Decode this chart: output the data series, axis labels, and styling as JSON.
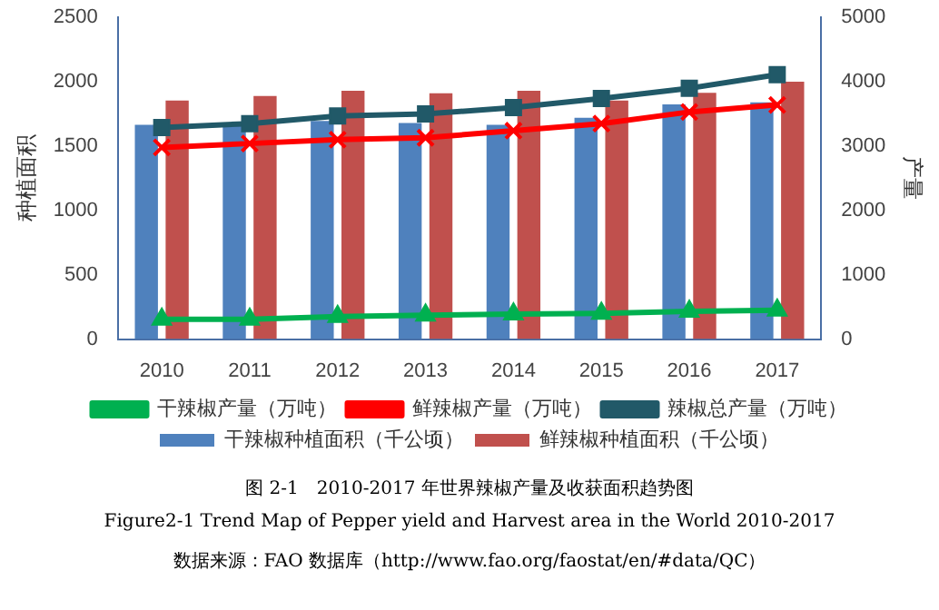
{
  "chart_data": {
    "type": "bar",
    "title": "图 2-1　2010-2017 年世界辣椒产量及收获面积趋势图",
    "subtitle": "Figure2-1 Trend Map of Pepper yield and Harvest area in the World 2010-2017",
    "annotations": [
      "数据来源：FAO 数据库（http://www.fao.org/faostat/en/#data/QC）"
    ],
    "ylabel": "种植面积",
    "y2label": "产量",
    "categories": [
      "2010",
      "2011",
      "2012",
      "2013",
      "2014",
      "2015",
      "2016",
      "2017"
    ],
    "series": [
      {
        "name": "干辣椒种植面积（千公顷）",
        "color": "#4f81bd",
        "values": [
          1665,
          1665,
          1695,
          1680,
          1665,
          1720,
          1825,
          1840
        ]
      },
      {
        "name": "鲜辣椒种植面积（千公顷）",
        "color": "#c0504d",
        "values": [
          1855,
          1890,
          1930,
          1910,
          1930,
          1855,
          1915,
          2000
        ]
      },
      {
        "name": "干辣椒产量（万吨）",
        "type": "line",
        "axis": "y2",
        "marker": "triangle",
        "color": "#00b050",
        "values": [
          310,
          310,
          350,
          370,
          390,
          400,
          430,
          450
        ]
      },
      {
        "name": "鲜辣椒产量（万吨）",
        "type": "line",
        "axis": "y2",
        "marker": "cross",
        "color": "#ff0000",
        "values": [
          2980,
          3040,
          3100,
          3130,
          3240,
          3350,
          3530,
          3640
        ]
      },
      {
        "name": "辣椒总产量（万吨）",
        "type": "line",
        "axis": "y2",
        "marker": "square",
        "color": "#215968",
        "values": [
          3290,
          3350,
          3470,
          3500,
          3600,
          3740,
          3900,
          4110
        ]
      }
    ],
    "ylim": [
      0,
      2500
    ],
    "yticks": [
      0,
      500,
      1000,
      1500,
      2000,
      2500
    ],
    "y2lim": [
      0,
      5000
    ],
    "y2ticks": [
      0,
      1000,
      2000,
      3000,
      4000,
      5000
    ],
    "grid": false,
    "legend": "bottom"
  }
}
